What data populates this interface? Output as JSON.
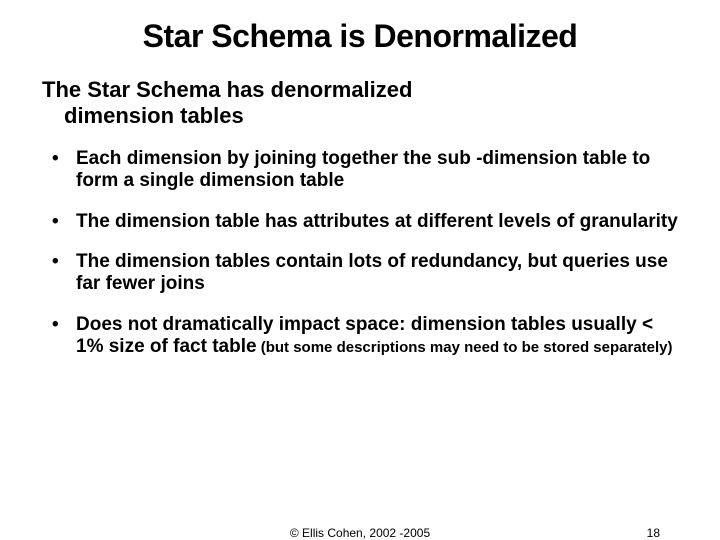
{
  "title": "Star Schema is Denormalized",
  "subtitle_line1": "The Star Schema has denormalized",
  "subtitle_line2": "dimension tables",
  "bullets": [
    {
      "text": "Each dimension by joining together the sub -dimension table to form a single dimension table"
    },
    {
      "text": "The dimension table has attributes at different levels of granularity"
    },
    {
      "text": "The dimension tables contain lots of redundancy, but queries use far fewer joins"
    },
    {
      "text": "Does not dramatically impact space: dimension tables usually < 1% size of fact table",
      "note": " (but some descriptions may need to be stored separately)"
    }
  ],
  "copyright": "© Ellis Cohen, 2002 -2005",
  "page": "18"
}
